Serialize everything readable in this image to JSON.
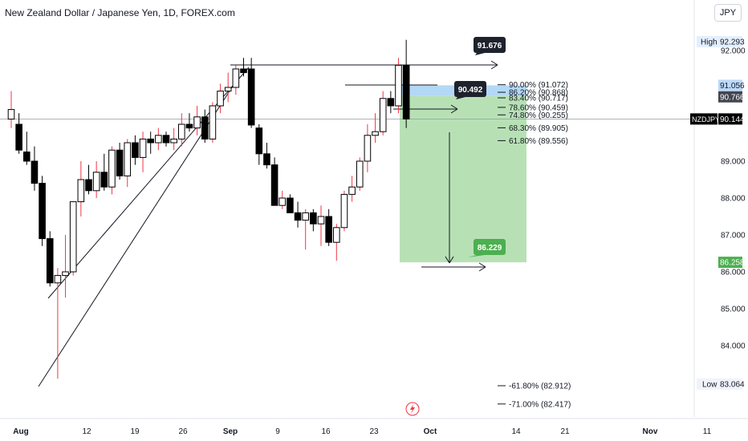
{
  "title": "New Zealand Dollar / Japanese Yen, 1D, FOREX.com",
  "currency_button": "JPY",
  "colors": {
    "up": "#ffffff",
    "down": "#000000",
    "wick_up": "#f23645",
    "wick_down": "#000000",
    "target_zone": "#b7e1b5",
    "stop_zone": "#b3d8f5",
    "price_label": "#000000",
    "high_label": "#e3effd",
    "target_label": "#4caf50",
    "stop_label": "#2962ff"
  },
  "chart_data": {
    "type": "candlestick",
    "symbol": "NZDJPY",
    "x_labels": [
      "Aug",
      "12",
      "19",
      "26",
      "Sep",
      "9",
      "16",
      "23",
      "Oct",
      "14",
      "21",
      "Nov",
      "11"
    ],
    "y_ticks": [
      92.0,
      89.0,
      88.0,
      87.0,
      86.0,
      85.0,
      84.0
    ],
    "ylim": [
      82.3,
      92.5
    ],
    "candles": [
      {
        "o": 90.14,
        "h": 90.9,
        "l": 89.9,
        "c": 90.4
      },
      {
        "o": 90.0,
        "h": 90.3,
        "l": 89.2,
        "c": 89.3
      },
      {
        "o": 89.25,
        "h": 89.8,
        "l": 88.9,
        "c": 89.0
      },
      {
        "o": 89.0,
        "h": 89.4,
        "l": 88.2,
        "c": 88.4
      },
      {
        "o": 88.4,
        "h": 88.6,
        "l": 86.7,
        "c": 86.9
      },
      {
        "o": 86.9,
        "h": 87.1,
        "l": 85.6,
        "c": 85.7
      },
      {
        "o": 85.7,
        "h": 86.1,
        "l": 83.1,
        "c": 85.9
      },
      {
        "o": 85.9,
        "h": 87.0,
        "l": 85.3,
        "c": 86.0
      },
      {
        "o": 86.0,
        "h": 87.9,
        "l": 85.9,
        "c": 87.9
      },
      {
        "o": 87.9,
        "h": 89.0,
        "l": 87.5,
        "c": 88.5
      },
      {
        "o": 88.5,
        "h": 88.9,
        "l": 88.1,
        "c": 88.2
      },
      {
        "o": 88.2,
        "h": 89.0,
        "l": 88.0,
        "c": 88.7
      },
      {
        "o": 88.7,
        "h": 89.2,
        "l": 88.2,
        "c": 88.3
      },
      {
        "o": 88.3,
        "h": 89.4,
        "l": 88.1,
        "c": 89.3
      },
      {
        "o": 89.3,
        "h": 89.5,
        "l": 88.5,
        "c": 88.6
      },
      {
        "o": 88.6,
        "h": 89.6,
        "l": 88.3,
        "c": 89.5
      },
      {
        "o": 89.5,
        "h": 89.7,
        "l": 88.9,
        "c": 89.1
      },
      {
        "o": 89.1,
        "h": 89.8,
        "l": 88.7,
        "c": 89.6
      },
      {
        "o": 89.6,
        "h": 89.8,
        "l": 89.2,
        "c": 89.5
      },
      {
        "o": 89.5,
        "h": 89.9,
        "l": 89.3,
        "c": 89.7
      },
      {
        "o": 89.7,
        "h": 89.8,
        "l": 89.4,
        "c": 89.5
      },
      {
        "o": 89.5,
        "h": 89.9,
        "l": 89.3,
        "c": 89.6
      },
      {
        "o": 89.6,
        "h": 90.3,
        "l": 89.4,
        "c": 90.0
      },
      {
        "o": 90.0,
        "h": 90.3,
        "l": 89.8,
        "c": 89.9
      },
      {
        "o": 89.9,
        "h": 90.5,
        "l": 89.7,
        "c": 90.2
      },
      {
        "o": 90.2,
        "h": 90.4,
        "l": 89.5,
        "c": 89.6
      },
      {
        "o": 89.6,
        "h": 90.6,
        "l": 89.5,
        "c": 90.5
      },
      {
        "o": 90.5,
        "h": 91.1,
        "l": 90.3,
        "c": 90.9
      },
      {
        "o": 90.9,
        "h": 91.4,
        "l": 90.6,
        "c": 91.0
      },
      {
        "o": 91.0,
        "h": 91.6,
        "l": 90.8,
        "c": 91.5
      },
      {
        "o": 91.5,
        "h": 91.8,
        "l": 91.3,
        "c": 91.4
      },
      {
        "o": 91.5,
        "h": 91.8,
        "l": 89.9,
        "c": 89.98
      },
      {
        "o": 89.9,
        "h": 90.0,
        "l": 88.9,
        "c": 89.2
      },
      {
        "o": 89.2,
        "h": 89.5,
        "l": 88.8,
        "c": 88.9
      },
      {
        "o": 88.9,
        "h": 89.1,
        "l": 87.8,
        "c": 87.8
      },
      {
        "o": 87.8,
        "h": 88.2,
        "l": 87.7,
        "c": 88.0
      },
      {
        "o": 88.0,
        "h": 88.1,
        "l": 87.6,
        "c": 87.6
      },
      {
        "o": 87.6,
        "h": 87.9,
        "l": 87.2,
        "c": 87.4
      },
      {
        "o": 87.4,
        "h": 87.7,
        "l": 86.6,
        "c": 87.6
      },
      {
        "o": 87.6,
        "h": 87.7,
        "l": 87.1,
        "c": 87.3
      },
      {
        "o": 87.3,
        "h": 87.8,
        "l": 86.7,
        "c": 87.5
      },
      {
        "o": 87.5,
        "h": 87.7,
        "l": 86.7,
        "c": 86.8
      },
      {
        "o": 86.8,
        "h": 87.3,
        "l": 86.3,
        "c": 87.2
      },
      {
        "o": 87.2,
        "h": 88.2,
        "l": 87.1,
        "c": 88.1
      },
      {
        "o": 88.1,
        "h": 88.6,
        "l": 87.9,
        "c": 88.3
      },
      {
        "o": 88.3,
        "h": 89.1,
        "l": 88.2,
        "c": 89.0
      },
      {
        "o": 89.0,
        "h": 90.0,
        "l": 88.7,
        "c": 89.7
      },
      {
        "o": 89.7,
        "h": 90.3,
        "l": 89.5,
        "c": 89.8
      },
      {
        "o": 89.8,
        "h": 90.9,
        "l": 89.7,
        "c": 90.7
      },
      {
        "o": 90.7,
        "h": 90.9,
        "l": 90.3,
        "c": 90.5
      },
      {
        "o": 90.5,
        "h": 91.8,
        "l": 90.3,
        "c": 91.6
      },
      {
        "o": 91.6,
        "h": 92.29,
        "l": 89.9,
        "c": 90.144
      }
    ],
    "fib_levels": [
      {
        "label": "90.00% (91.072)",
        "price": 91.072
      },
      {
        "label": "86.20% (90.868)",
        "price": 90.868
      },
      {
        "label": "83.40% (90.717)",
        "price": 90.717
      },
      {
        "label": "78.60% (90.459)",
        "price": 90.459
      },
      {
        "label": "74.80% (90.255)",
        "price": 90.255
      },
      {
        "label": "68.30% (89.905)",
        "price": 89.905
      },
      {
        "label": "61.80% (89.556)",
        "price": 89.556
      },
      {
        "label": "-61.80% (82.912)",
        "price": 82.912
      },
      {
        "label": "-71.00% (82.417)",
        "price": 82.417
      }
    ],
    "callouts": [
      {
        "label": "91.676",
        "price": 91.676
      },
      {
        "label": "90.492",
        "price": 90.492
      },
      {
        "label": "86.229",
        "price": 86.229
      }
    ],
    "price_labels": {
      "high_label": "High",
      "high": "92.293",
      "low_label": "Low",
      "low": "83.064",
      "current_symbol": "NZDJPY",
      "current": "90.144",
      "stop_upper": "91.056",
      "entry": "90.766",
      "target": "86.258"
    }
  }
}
